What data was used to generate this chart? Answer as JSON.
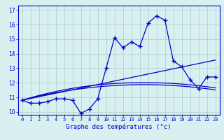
{
  "xlabel": "Graphe des températures (°c)",
  "hours": [
    0,
    1,
    2,
    3,
    4,
    5,
    6,
    7,
    8,
    9,
    10,
    11,
    12,
    13,
    14,
    15,
    16,
    17,
    18,
    19,
    20,
    21,
    22,
    23
  ],
  "temps": [
    10.8,
    10.6,
    10.6,
    10.7,
    10.9,
    10.9,
    10.8,
    9.9,
    10.2,
    10.9,
    13.0,
    15.1,
    14.4,
    14.8,
    14.5,
    16.1,
    16.6,
    16.3,
    13.5,
    13.1,
    12.2,
    11.6,
    12.4,
    12.4
  ],
  "trend1": [
    10.8,
    10.92,
    11.04,
    11.16,
    11.28,
    11.4,
    11.52,
    11.64,
    11.76,
    11.88,
    12.0,
    12.12,
    12.24,
    12.36,
    12.48,
    12.6,
    12.72,
    12.84,
    12.96,
    13.08,
    13.2,
    13.32,
    13.44,
    13.56
  ],
  "trend2": [
    10.8,
    10.97,
    11.13,
    11.27,
    11.4,
    11.52,
    11.62,
    11.71,
    11.79,
    11.85,
    11.91,
    11.95,
    11.98,
    12.0,
    12.01,
    12.01,
    12.0,
    11.98,
    11.95,
    11.91,
    11.86,
    11.8,
    11.73,
    11.65
  ],
  "trend3": [
    10.8,
    10.95,
    11.09,
    11.21,
    11.32,
    11.42,
    11.51,
    11.59,
    11.66,
    11.72,
    11.77,
    11.81,
    11.84,
    11.86,
    11.87,
    11.87,
    11.86,
    11.84,
    11.81,
    11.77,
    11.72,
    11.66,
    11.59,
    11.51
  ],
  "line_color": "#0000cc",
  "bg_color": "#d8f0f0",
  "grid_color": "#aacccc",
  "xlim": [
    -0.5,
    23.5
  ],
  "ylim": [
    9.8,
    17.3
  ],
  "yticks": [
    10,
    11,
    12,
    13,
    14,
    15,
    16,
    17
  ]
}
